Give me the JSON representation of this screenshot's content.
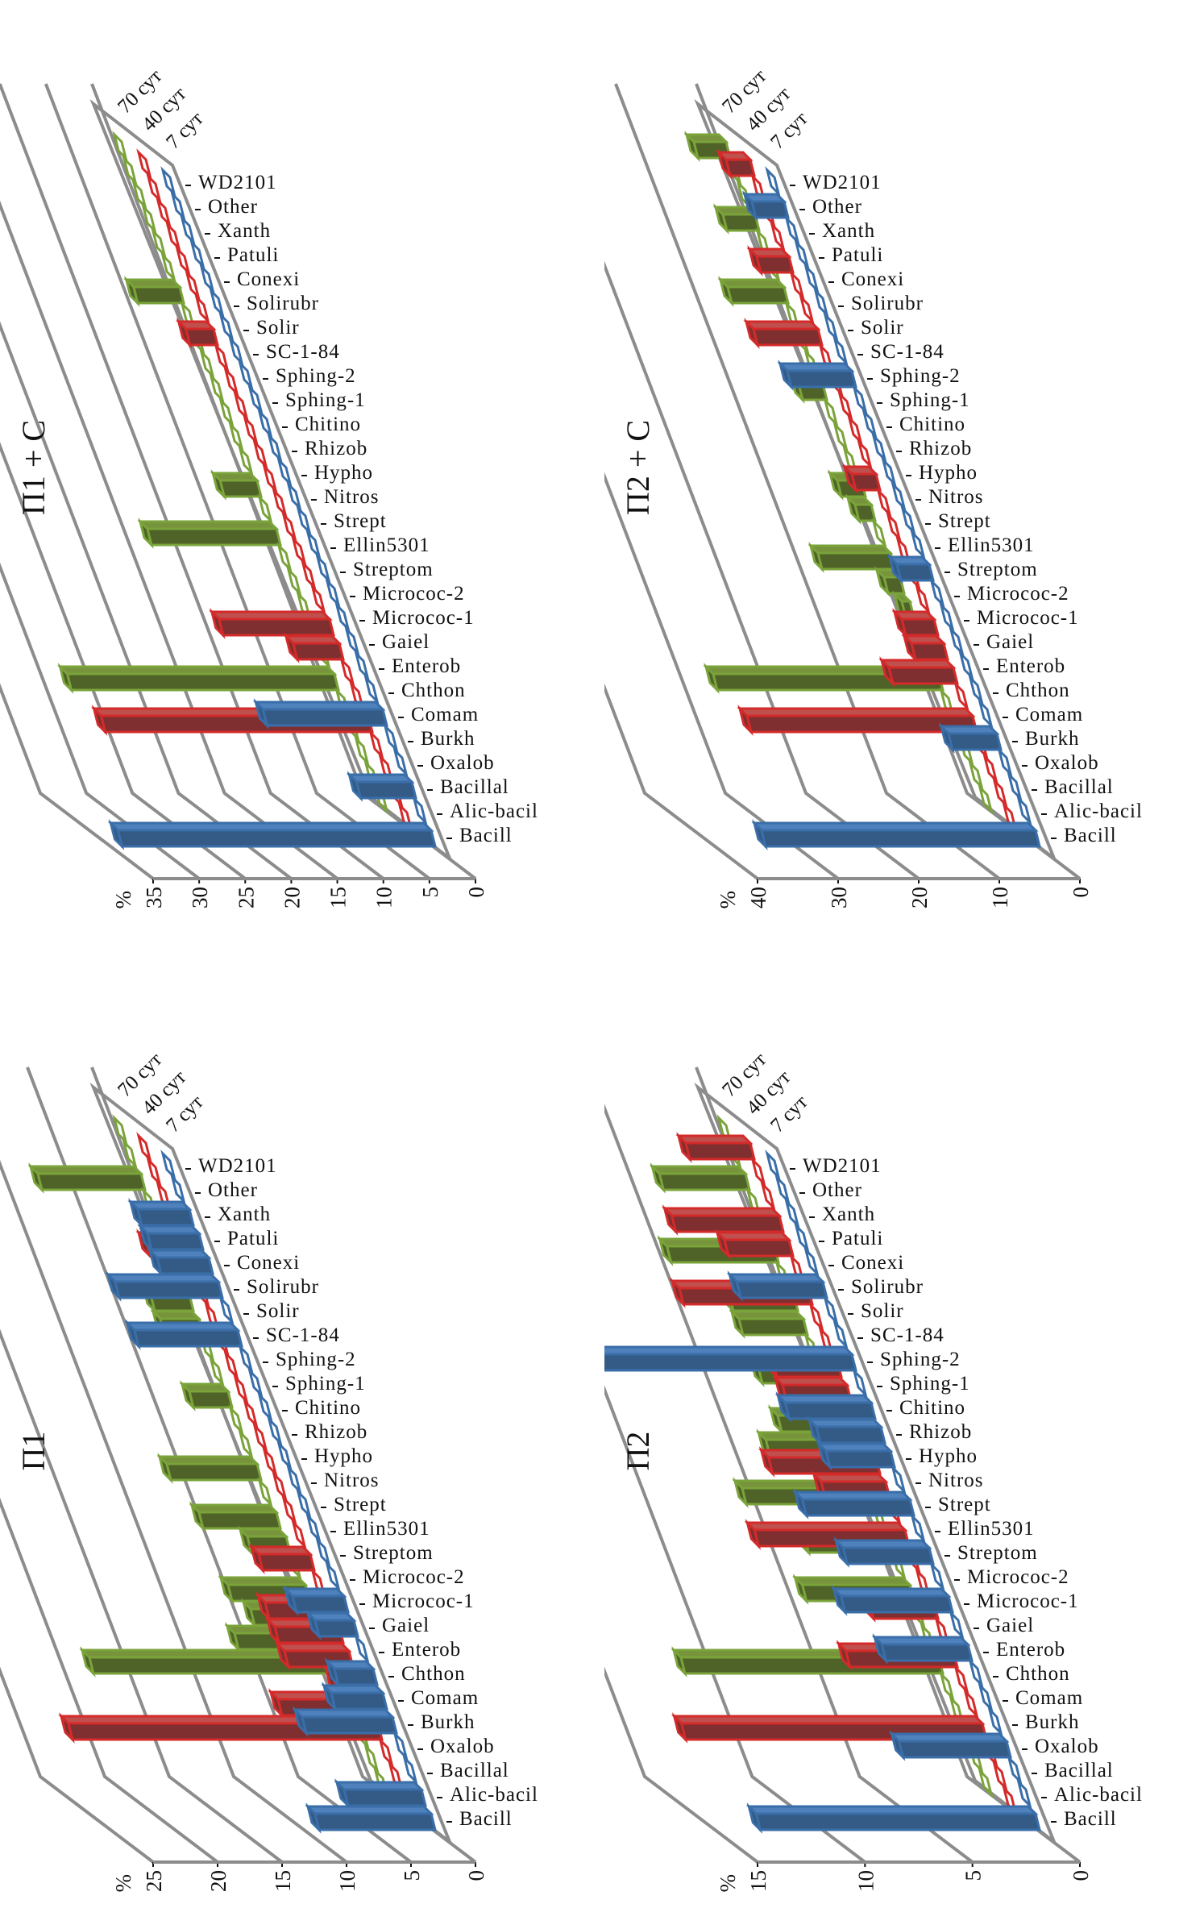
{
  "figure": {
    "series_labels": [
      "7 сут",
      "40 сут",
      "70 сут"
    ],
    "unit_label": "%"
  },
  "colors": {
    "s0_top": "#345a86",
    "s0_front": "#4f81bd",
    "s0_edge": "#3a6ea8",
    "s1_top": "#7f2f2f",
    "s1_front": "#c0504d",
    "s1_edge": "#d42a2a",
    "s2_top": "#4f6228",
    "s2_front": "#77933c",
    "s2_edge": "#7aa33a",
    "grid": "#8c8c8c"
  },
  "chart_data": [
    {
      "id": "p1c",
      "type": "bar",
      "title": "П1 + C",
      "ylabel": "%",
      "ylim": [
        0,
        35
      ],
      "yticks": [
        "0",
        "5",
        "10",
        "15",
        "20",
        "25",
        "30",
        "35"
      ],
      "categories": [
        "Bacill",
        "Alic-bacil",
        "Bacillal",
        "Oxalob",
        "Burkh",
        "Comam",
        "Chthon",
        "Enterob",
        "Gaiel",
        "Micrococ-1",
        "Micrococ-2",
        "Streptom",
        "Ellin5301",
        "Strept",
        "Nitros",
        "Hypho",
        "Rhizob",
        "Chitino",
        "Sphing-1",
        "Sphing-2",
        "SC-1-84",
        "Solir",
        "Solirubr",
        "Conexi",
        "Patuli",
        "Xanth",
        "Other",
        "WD2101"
      ],
      "series": [
        {
          "name": "7 сут",
          "values": [
            34,
            0,
            6,
            0,
            0,
            13,
            0,
            0,
            0,
            0,
            0,
            0,
            0,
            0,
            0,
            0,
            0,
            0,
            0,
            0,
            0,
            0,
            0,
            0,
            0,
            0,
            0,
            0
          ]
        },
        {
          "name": "40 сут",
          "values": [
            0,
            0,
            0,
            0,
            29,
            0,
            0,
            5,
            12,
            0,
            0,
            0,
            0,
            0,
            0,
            0,
            0,
            0,
            0,
            0,
            3,
            0,
            0,
            0,
            0,
            0,
            0,
            0
          ]
        },
        {
          "name": "70 сут",
          "values": [
            0,
            0,
            0,
            0,
            0,
            29,
            0,
            0,
            0,
            0,
            0,
            14,
            0,
            4,
            0,
            0,
            0,
            0,
            0,
            0,
            0,
            5,
            0,
            0,
            0,
            0,
            0,
            0
          ]
        }
      ]
    },
    {
      "id": "p2c",
      "type": "bar",
      "title": "П2 + C",
      "ylabel": "%",
      "ylim": [
        0,
        40
      ],
      "yticks": [
        "0",
        "10",
        "20",
        "30",
        "40"
      ],
      "categories": [
        "Bacill",
        "Alic-bacil",
        "Bacillal",
        "Oxalob",
        "Burkh",
        "Comam",
        "Chthon",
        "Enterob",
        "Gaiel",
        "Micrococ-1",
        "Micrococ-2",
        "Streptom",
        "Ellin5301",
        "Strept",
        "Nitros",
        "Hypho",
        "Rhizob",
        "Chitino",
        "Sphing-1",
        "Sphing-2",
        "SC-1-84",
        "Solir",
        "Solirubr",
        "Conexi",
        "Patuli",
        "Xanth",
        "Other",
        "WD2101"
      ],
      "series": [
        {
          "name": "7 сут",
          "values": [
            34,
            0,
            0,
            0,
            6,
            0,
            0,
            0,
            0,
            0,
            0,
            4,
            0,
            0,
            0,
            0,
            0,
            0,
            0,
            8,
            0,
            0,
            0,
            0,
            0,
            0,
            4,
            0
          ]
        },
        {
          "name": "40 сут",
          "values": [
            0,
            0,
            0,
            0,
            28,
            0,
            8,
            4,
            4,
            0,
            0,
            0,
            0,
            0,
            3,
            0,
            0,
            0,
            0,
            0,
            8,
            0,
            0,
            4,
            0,
            0,
            0,
            3
          ]
        },
        {
          "name": "70 сут",
          "values": [
            0,
            0,
            0,
            0,
            0,
            28,
            0,
            0,
            1,
            2,
            9,
            0,
            2,
            3,
            0,
            0,
            0,
            3,
            0,
            0,
            0,
            7,
            0,
            0,
            4,
            0,
            0,
            4
          ]
        }
      ]
    },
    {
      "id": "p1",
      "type": "bar",
      "title": "П1",
      "ylabel": "%",
      "ylim": [
        0,
        25
      ],
      "yticks": [
        "0",
        "5",
        "10",
        "15",
        "20",
        "25"
      ],
      "categories": [
        "Bacill",
        "Alic-bacil",
        "Bacillal",
        "Oxalob",
        "Burkh",
        "Comam",
        "Chthon",
        "Enterob",
        "Gaiel",
        "Micrococ-1",
        "Micrococ-2",
        "Streptom",
        "Ellin5301",
        "Strept",
        "Nitros",
        "Hypho",
        "Rhizob",
        "Chitino",
        "Sphing-1",
        "Sphing-2",
        "SC-1-84",
        "Solir",
        "Solirubr",
        "Conexi",
        "Patuli",
        "Xanth",
        "Other",
        "WD2101"
      ],
      "series": [
        {
          "name": "7 сут",
          "values": [
            9,
            6,
            0,
            0,
            7,
            4,
            3,
            0,
            3,
            4,
            0,
            0,
            0,
            0,
            0,
            0,
            0,
            0,
            0,
            0,
            8,
            0,
            8,
            4,
            4,
            4,
            0,
            0
          ]
        },
        {
          "name": "40 сут",
          "values": [
            0,
            0,
            0,
            24,
            7,
            2,
            5,
            5,
            5,
            0,
            4,
            0,
            0,
            0,
            0,
            0,
            0,
            0,
            0,
            0,
            0,
            0,
            0,
            3,
            0,
            0,
            0,
            0
          ]
        },
        {
          "name": "70 сут",
          "values": [
            0,
            0,
            0,
            0,
            0,
            19,
            7,
            5,
            6,
            0,
            3,
            6,
            0,
            7,
            0,
            0,
            3,
            0,
            0,
            3,
            3,
            0,
            0,
            0,
            0,
            8,
            0,
            0
          ]
        }
      ]
    },
    {
      "id": "p2",
      "type": "bar",
      "title": "П2",
      "ylabel": "%",
      "ylim": [
        0,
        15
      ],
      "yticks": [
        "0",
        "5",
        "10",
        "15"
      ],
      "categories": [
        "Bacill",
        "Alic-bacil",
        "Bacillal",
        "Oxalob",
        "Burkh",
        "Comam",
        "Chthon",
        "Enterob",
        "Gaiel",
        "Micrococ-1",
        "Micrococ-2",
        "Streptom",
        "Ellin5301",
        "Strept",
        "Nitros",
        "Hypho",
        "Rhizob",
        "Chitino",
        "Sphing-1",
        "Sphing-2",
        "SC-1-84",
        "Solir",
        "Solirubr",
        "Conexi",
        "Patuli",
        "Xanth",
        "Other",
        "WD2101"
      ],
      "series": [
        {
          "name": "7 сут",
          "values": [
            13,
            0,
            0,
            5,
            0,
            0,
            0,
            4,
            0,
            5,
            0,
            4,
            0,
            5,
            0,
            3,
            3,
            4,
            0,
            12,
            0,
            0,
            4,
            0,
            0,
            0,
            0,
            0
          ]
        },
        {
          "name": "40 сут",
          "values": [
            0,
            0,
            0,
            14,
            0,
            0,
            5,
            0,
            3,
            0,
            0,
            7,
            0,
            3,
            5,
            0,
            0,
            3,
            3,
            0,
            0,
            6,
            0,
            3,
            5,
            0,
            0,
            3
          ]
        },
        {
          "name": "70 сут",
          "values": [
            0,
            0,
            0,
            0,
            0,
            12,
            0,
            0,
            5,
            0,
            4,
            0,
            6,
            0,
            4,
            3,
            0,
            3,
            0,
            3,
            3,
            0,
            5,
            0,
            0,
            4,
            0,
            0
          ]
        }
      ]
    }
  ]
}
